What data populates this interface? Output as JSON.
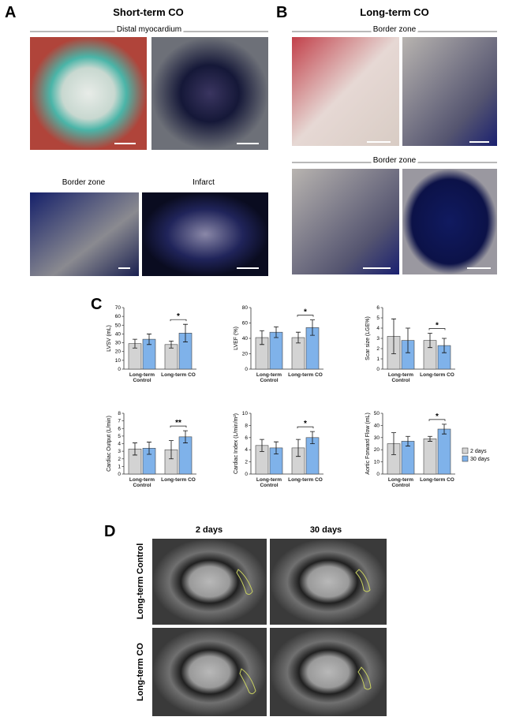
{
  "panel_a": {
    "label": "A",
    "title": "Short-term CO",
    "top_caption": "Distal myocardium",
    "captions": [
      "Border zone",
      "Infarct"
    ]
  },
  "panel_b": {
    "label": "B",
    "title": "Long-term CO",
    "captions": [
      "Border zone",
      "Border zone"
    ]
  },
  "panel_c": {
    "label": "C"
  },
  "chart_data": [
    {
      "type": "bar",
      "ylabel": "LVSV (mL)",
      "categories": [
        "Long-term Control",
        "Long-term CO"
      ],
      "ylim": [
        0,
        70
      ],
      "yticks": [
        0,
        10,
        20,
        30,
        40,
        50,
        60,
        70
      ],
      "significance": "*",
      "series": [
        {
          "name": "2 days",
          "color": "#d3d3d3",
          "values": [
            29,
            28
          ],
          "errors": [
            5,
            4
          ]
        },
        {
          "name": "30 days",
          "color": "#7fb2ea",
          "values": [
            34,
            41
          ],
          "errors": [
            6,
            10
          ]
        }
      ]
    },
    {
      "type": "bar",
      "ylabel": "LVEF (%)",
      "categories": [
        "Long-term Control",
        "Long-term CO"
      ],
      "ylim": [
        0,
        80
      ],
      "yticks": [
        0,
        20,
        40,
        60,
        80
      ],
      "significance": "*",
      "series": [
        {
          "name": "2 days",
          "color": "#d3d3d3",
          "values": [
            41,
            41
          ],
          "errors": [
            9,
            7
          ]
        },
        {
          "name": "30 days",
          "color": "#7fb2ea",
          "values": [
            48,
            54
          ],
          "errors": [
            7,
            10
          ]
        }
      ]
    },
    {
      "type": "bar",
      "ylabel": "Scar size (LGE%)",
      "categories": [
        "Long-term Control",
        "Long-term CO"
      ],
      "ylim": [
        0,
        6
      ],
      "yticks": [
        0,
        1,
        2,
        3,
        4,
        5,
        6
      ],
      "significance": "*",
      "series": [
        {
          "name": "2 days",
          "color": "#d3d3d3",
          "values": [
            3.2,
            2.8
          ],
          "errors": [
            1.7,
            0.7
          ]
        },
        {
          "name": "30 days",
          "color": "#7fb2ea",
          "values": [
            2.8,
            2.3
          ],
          "errors": [
            1.2,
            0.7
          ]
        }
      ]
    },
    {
      "type": "bar",
      "ylabel": "Cardiac Output (L/min)",
      "categories": [
        "Long-term Control",
        "Long-term CO"
      ],
      "ylim": [
        0,
        8
      ],
      "yticks": [
        0,
        1,
        2,
        3,
        4,
        5,
        6,
        7,
        8
      ],
      "significance": "**",
      "series": [
        {
          "name": "2 days",
          "color": "#d3d3d3",
          "values": [
            3.3,
            3.2
          ],
          "errors": [
            0.8,
            1.2
          ]
        },
        {
          "name": "30 days",
          "color": "#7fb2ea",
          "values": [
            3.4,
            4.9
          ],
          "errors": [
            0.8,
            0.8
          ]
        }
      ]
    },
    {
      "type": "bar",
      "ylabel": "Cardiac Index (L/min/m²)",
      "categories": [
        "Long-term Control",
        "Long-term CO"
      ],
      "ylim": [
        0,
        10
      ],
      "yticks": [
        0,
        2,
        4,
        6,
        8,
        10
      ],
      "significance": "*",
      "series": [
        {
          "name": "2 days",
          "color": "#d3d3d3",
          "values": [
            4.7,
            4.3
          ],
          "errors": [
            1,
            1.4
          ]
        },
        {
          "name": "30 days",
          "color": "#7fb2ea",
          "values": [
            4.3,
            6
          ],
          "errors": [
            1,
            1
          ]
        }
      ]
    },
    {
      "type": "bar",
      "ylabel": "Aortic Forward Flow (mL)",
      "categories": [
        "Long-term Control",
        "Long-term CO"
      ],
      "ylim": [
        0,
        50
      ],
      "yticks": [
        0,
        10,
        20,
        30,
        40,
        50
      ],
      "significance": "*",
      "legend": true,
      "series": [
        {
          "name": "2 days",
          "color": "#d3d3d3",
          "values": [
            25,
            29
          ],
          "errors": [
            9,
            2
          ]
        },
        {
          "name": "30 days",
          "color": "#7fb2ea",
          "values": [
            27,
            37
          ],
          "errors": [
            4,
            4
          ]
        }
      ]
    }
  ],
  "panel_d": {
    "label": "D",
    "columns": [
      "2 days",
      "30 days"
    ],
    "rows": [
      "Long-term Control",
      "Long-term CO"
    ]
  }
}
